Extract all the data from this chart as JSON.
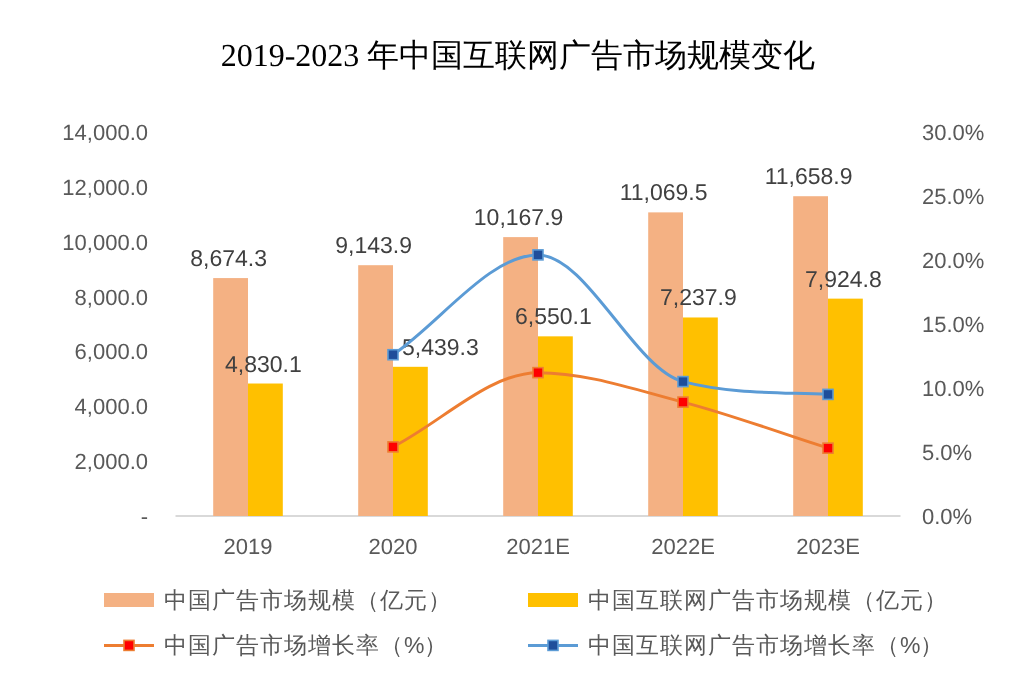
{
  "chart_data": {
    "type": "bar",
    "title": "2019-2023 年中国互联网广告市场规模变化",
    "categories": [
      "2019",
      "2020",
      "2021E",
      "2022E",
      "2023E"
    ],
    "series": [
      {
        "name": "中国广告市场规模（亿元）",
        "color": "#f4b183",
        "values": [
          8674.3,
          9143.9,
          10167.9,
          11069.5,
          11658.9
        ],
        "value_labels": [
          "8,674.3",
          "9,143.9",
          "10,167.9",
          "11,069.5",
          "11,658.9"
        ]
      },
      {
        "name": "中国互联网广告市场规模（亿元）",
        "color": "#ffc000",
        "values": [
          4830.1,
          5439.3,
          6550.1,
          7237.9,
          7924.8
        ],
        "value_labels": [
          "4,830.1",
          "5,439.3",
          "6,550.1",
          "7,237.9",
          "7,924.8"
        ]
      },
      {
        "name": "中国广告市场增长率（%）",
        "type": "line",
        "axis": "y2",
        "color": "#ed7d31",
        "colors": [
          null,
          "#ff0000",
          "#ff0000",
          "#ff0000",
          "#ff0000"
        ],
        "values": [
          null,
          5.4,
          11.2,
          8.9,
          5.3
        ]
      },
      {
        "name": "中国互联网广告市场增长率（%）",
        "type": "line",
        "axis": "y2",
        "color": "#5b9bd5",
        "colors": [
          null,
          "#1f4e9a",
          "#1f4e9a",
          "#1f4e9a",
          "#1f4e9a"
        ],
        "values": [
          null,
          12.6,
          20.4,
          10.5,
          9.5
        ]
      }
    ],
    "ylim": [
      0,
      14000
    ],
    "yticks": [
      {
        "value": 0,
        "label": "-"
      },
      {
        "value": 2000,
        "label": "2,000.0"
      },
      {
        "value": 4000,
        "label": "4,000.0"
      },
      {
        "value": 6000,
        "label": "6,000.0"
      },
      {
        "value": 8000,
        "label": "8,000.0"
      },
      {
        "value": 10000,
        "label": "10,000.0"
      },
      {
        "value": 12000,
        "label": "12,000.0"
      },
      {
        "value": 14000,
        "label": "14,000.0"
      }
    ],
    "y2lim": [
      0,
      30
    ],
    "y2ticks": [
      {
        "value": 0,
        "label": "0.0%"
      },
      {
        "value": 5,
        "label": "5.0%"
      },
      {
        "value": 10,
        "label": "10.0%"
      },
      {
        "value": 15,
        "label": "15.0%"
      },
      {
        "value": 20,
        "label": "20.0%"
      },
      {
        "value": 25,
        "label": "25.0%"
      },
      {
        "value": 30,
        "label": "30.0%"
      }
    ],
    "legend": "bottom",
    "marker": "square"
  }
}
